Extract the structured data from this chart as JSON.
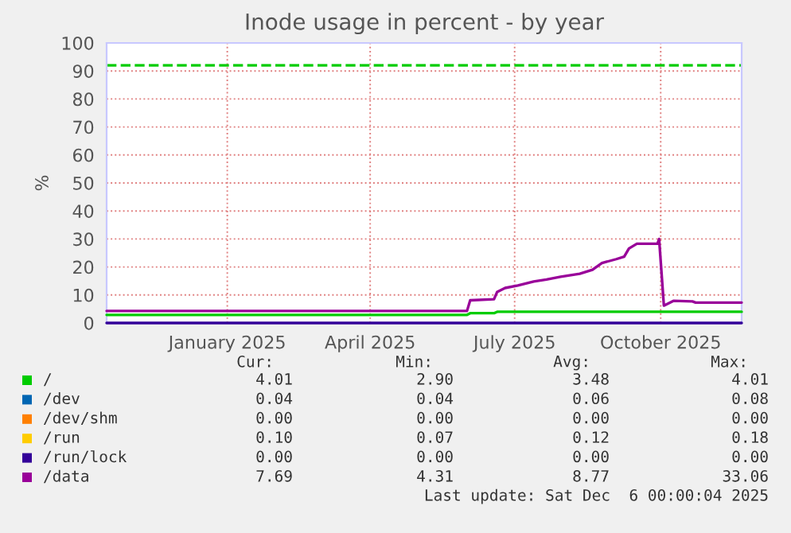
{
  "chart_data": {
    "type": "line",
    "title": "Inode usage in percent - by year",
    "ylabel": "%",
    "xlim": [
      "2024-11-01",
      "2025-12-06"
    ],
    "xticks": [
      {
        "value": "2025-01-16",
        "label": "January 2025"
      },
      {
        "value": "2025-04-16",
        "label": "April 2025"
      },
      {
        "value": "2025-07-16",
        "label": "July 2025"
      },
      {
        "value": "2025-10-16",
        "label": "October 2025"
      }
    ],
    "ylim": [
      0,
      100
    ],
    "yticks": [
      0,
      10,
      20,
      30,
      40,
      50,
      60,
      70,
      80,
      90,
      100
    ],
    "grid": true,
    "legend": "bottom",
    "line_style": "solid",
    "marker": "none",
    "ref_lines": [
      {
        "axis": "y",
        "value": 92,
        "color": "#00cc00",
        "line_style": "dashed"
      }
    ],
    "series": [
      {
        "name": "/",
        "color": "#00cc00",
        "x": [
          "2024-11-01",
          "2025-06-16",
          "2025-06-18",
          "2025-07-03",
          "2025-07-05",
          "2025-12-06"
        ],
        "values": [
          2.9,
          2.9,
          3.5,
          3.5,
          4.0,
          4.0
        ]
      },
      {
        "name": "/dev",
        "color": "#0066b3"
      },
      {
        "name": "/dev/shm",
        "color": "#ff8000"
      },
      {
        "name": "/run",
        "color": "#ffcc00"
      },
      {
        "name": "/run/lock",
        "color": "#330099",
        "x": [
          "2024-11-01",
          "2025-12-06"
        ],
        "values": [
          0,
          0
        ]
      },
      {
        "name": "/data",
        "color": "#990099",
        "x": [
          "2024-11-01",
          "2025-06-16",
          "2025-06-18",
          "2025-07-03",
          "2025-07-05",
          "2025-07-10",
          "2025-07-18",
          "2025-07-25",
          "2025-07-28",
          "2025-08-05",
          "2025-08-14",
          "2025-08-26",
          "2025-09-03",
          "2025-09-09",
          "2025-09-18",
          "2025-09-23",
          "2025-09-26",
          "2025-10-01",
          "2025-10-14",
          "2025-10-15",
          "2025-10-18",
          "2025-10-24",
          "2025-11-05",
          "2025-11-07",
          "2025-12-06"
        ],
        "values": [
          4.3,
          4.3,
          8.1,
          8.5,
          11.1,
          12.5,
          13.4,
          14.4,
          14.8,
          15.5,
          16.5,
          17.6,
          19,
          21.4,
          22.8,
          23.7,
          26.6,
          28.3,
          28.3,
          30,
          6.2,
          7.9,
          7.7,
          7.3,
          7.3
        ]
      }
    ],
    "annotations": [
      "Cur:",
      "Min:",
      "Avg:",
      "Max:",
      "4.01",
      "2.90",
      "3.48",
      "4.01",
      "0.04",
      "0.04",
      "0.06",
      "0.08",
      "0.00",
      "0.00",
      "0.00",
      "0.00",
      "0.10",
      "0.07",
      "0.12",
      "0.18",
      "0.00",
      "0.00",
      "0.00",
      "0.00",
      "7.69",
      "4.31",
      "8.77",
      "33.06",
      "Last update: Sat Dec  6 00:00:04 2025"
    ]
  }
}
